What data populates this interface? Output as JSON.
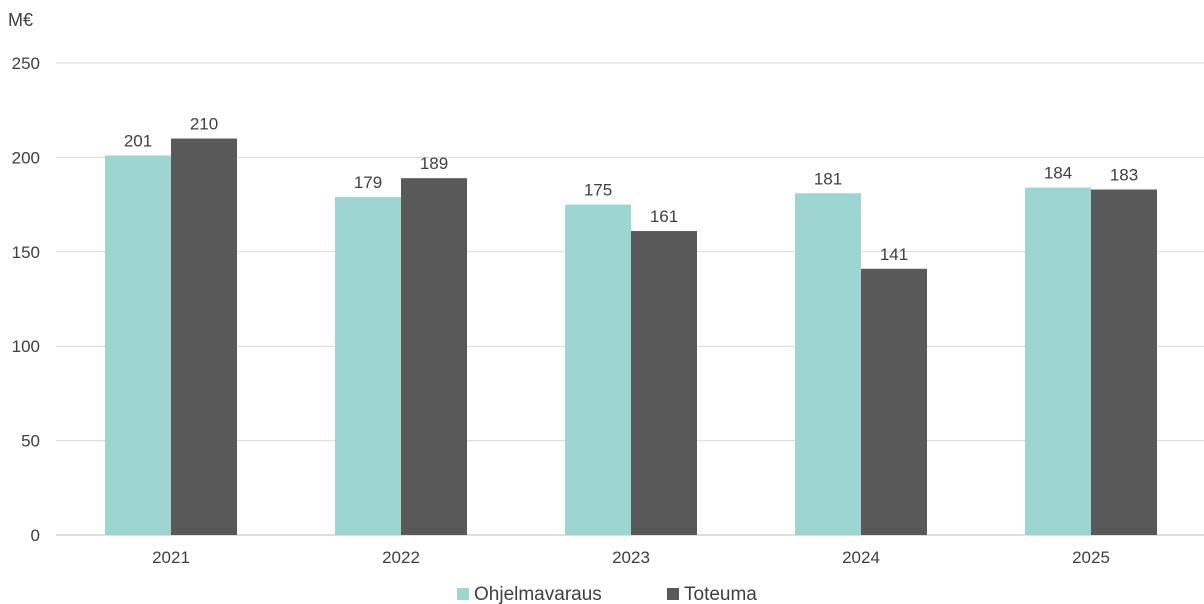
{
  "chart_data": {
    "type": "bar",
    "ylabel": "M€",
    "categories": [
      "2021",
      "2022",
      "2023",
      "2024",
      "2025"
    ],
    "series": [
      {
        "name": "Ohjelmavaraus",
        "values": [
          201,
          179,
          175,
          181,
          184
        ],
        "color": "#9dd6d0"
      },
      {
        "name": "Toteuma",
        "values": [
          210,
          189,
          161,
          141,
          183
        ],
        "color": "#595959"
      }
    ],
    "yticks": [
      "0",
      "50",
      "100",
      "150",
      "200",
      "250"
    ],
    "ylim": [
      0,
      250
    ],
    "grid": true,
    "legend_position": "bottom"
  }
}
